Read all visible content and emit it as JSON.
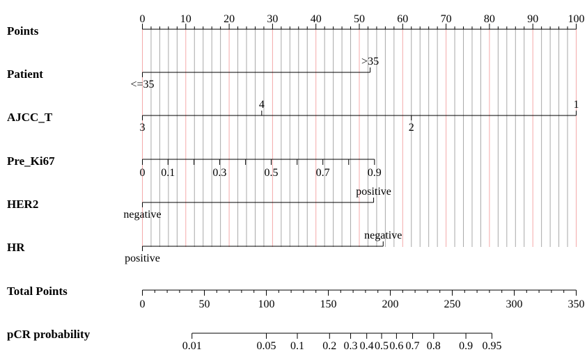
{
  "chart_data": {
    "type": "nomogram",
    "points_scale": {
      "label": "Points",
      "min": 0,
      "max": 100,
      "major_ticks": [
        "0",
        "10",
        "20",
        "30",
        "40",
        "50",
        "60",
        "70",
        "80",
        "90",
        "100"
      ]
    },
    "variables": [
      {
        "name": "Patient",
        "levels": [
          {
            "label": "<=35",
            "points": 0
          },
          {
            "label": ">35",
            "points": 52.5
          }
        ]
      },
      {
        "name": "AJCC_T",
        "levels": [
          {
            "label": "3",
            "points": 0
          },
          {
            "label": "4",
            "points": 27.5
          },
          {
            "label": "2",
            "points": 62
          },
          {
            "label": "1",
            "points": 100
          }
        ]
      },
      {
        "name": "Pre_Ki67",
        "levels": [
          {
            "label": "0",
            "points": 0
          },
          {
            "label": "0.1",
            "points": 5.9
          },
          {
            "label": "0.3",
            "points": 17.8
          },
          {
            "label": "0.5",
            "points": 29.7
          },
          {
            "label": "0.7",
            "points": 41.6
          },
          {
            "label": "0.9",
            "points": 53.5
          }
        ],
        "minor_ticks": [
          0.2,
          0.4,
          0.6,
          0.8
        ]
      },
      {
        "name": "HER2",
        "levels": [
          {
            "label": "negative",
            "points": 0
          },
          {
            "label": "positive",
            "points": 53.3
          }
        ]
      },
      {
        "name": "HR",
        "levels": [
          {
            "label": "positive",
            "points": 0
          },
          {
            "label": "negative",
            "points": 55.5
          }
        ]
      }
    ],
    "total_points": {
      "label": "Total Points",
      "min": 0,
      "max": 350,
      "ticks": [
        "0",
        "50",
        "100",
        "150",
        "200",
        "250",
        "300",
        "350"
      ]
    },
    "probability": {
      "label": "pCR probability",
      "points": [
        {
          "label": "0.01",
          "total": 40
        },
        {
          "label": "0.05",
          "total": 100
        },
        {
          "label": "0.1",
          "total": 125
        },
        {
          "label": "0.2",
          "total": 151
        },
        {
          "label": "0.3",
          "total": 168
        },
        {
          "label": "0.4",
          "total": 181
        },
        {
          "label": "0.5",
          "total": 193
        },
        {
          "label": "0.6",
          "total": 205
        },
        {
          "label": "0.7",
          "total": 218
        },
        {
          "label": "0.8",
          "total": 235
        },
        {
          "label": "0.9",
          "total": 261
        },
        {
          "label": "0.95",
          "total": 282
        }
      ]
    },
    "grid": true,
    "colors": {
      "major_grid": "#f4a9a9",
      "minor_grid": "#a8a8a8",
      "axis": "#000000"
    }
  }
}
